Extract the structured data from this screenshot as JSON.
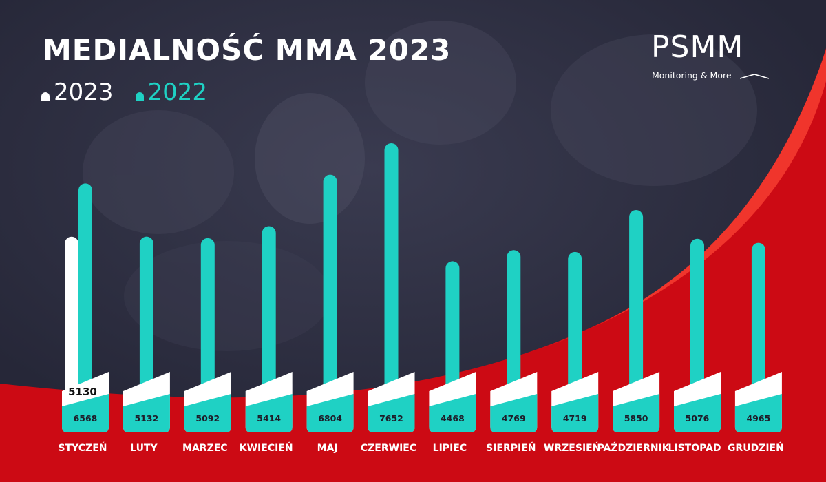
{
  "title": "MEDIALNOŚĆ MMA 2023",
  "legend": [
    {
      "label": "2023",
      "color": "#ffffff"
    },
    {
      "label": "2022",
      "color": "#1fd1c4"
    }
  ],
  "logo": {
    "name": "PSMM",
    "tagline": "Monitoring & More"
  },
  "colors": {
    "background": "#2a2b3d",
    "accent_red": "#cc0a14",
    "teal": "#1fd1c4",
    "white": "#ffffff"
  },
  "chart_data": {
    "type": "bar",
    "categories": [
      "STYCZEŃ",
      "LUTY",
      "MARZEC",
      "KWIECIEŃ",
      "MAJ",
      "CZERWIEC",
      "LIPIEC",
      "SIERPIEŃ",
      "WRZESIEŃ",
      "PAŹDZIERNIK",
      "LISTOPAD",
      "GRUDZIEŃ"
    ],
    "series": [
      {
        "name": "2023",
        "values": [
          5130,
          null,
          null,
          null,
          null,
          null,
          null,
          null,
          null,
          null,
          null,
          null
        ]
      },
      {
        "name": "2022",
        "values": [
          6568,
          5132,
          5092,
          5414,
          6804,
          7652,
          4468,
          4769,
          4719,
          5850,
          5076,
          4965
        ]
      }
    ],
    "title": "MEDIALNOŚĆ MMA 2023",
    "xlabel": "",
    "ylabel": "",
    "legend_position": "top-left",
    "grid": false
  }
}
